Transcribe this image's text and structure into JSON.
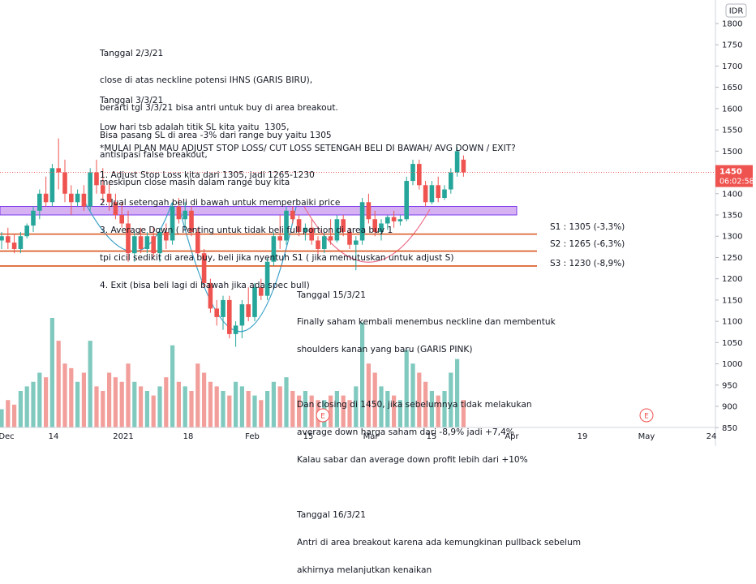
{
  "currency": "IDR",
  "price_tag": {
    "price": "1450",
    "time": "06:02:58"
  },
  "colors": {
    "up": "#26a69a",
    "down": "#ef5350",
    "neckline": "#7c3aed",
    "pink": "#ec6e8a",
    "blue": "#3aa0c8",
    "support": "#d9541e"
  },
  "annotations": {
    "block1": [
      "Tanggal 2/3/21",
      "close di atas neckline potensi IHNS (GARIS BIRU),",
      "berarti tgl 3/3/21 bisa antri untuk buy di area breakout.",
      "Bisa pasang SL di area -3% dari range buy yaitu 1305"
    ],
    "block2": [
      "Tanggal 3/3/21",
      "Low hari tsb adalah titik SL kita yaitu  1305,",
      "antisipasi false breakout,",
      "meskipun close masih dalam range buy kita"
    ],
    "block3": [
      "*MULAI PLAN MAU ADJUST STOP LOSS/ CUT LOSS SETENGAH BELI DI BAWAH/ AVG DOWN / EXIT?",
      "1. Adjust Stop Loss kita dari 1305, jadi 1265-1230",
      "2. Jual setengah beli di bawah untuk memperbaiki price",
      "3. Average Down ( Penting untuk tidak beli full portion di area buy 1",
      "tpi cicil sedikit di area buy, beli jika nyentuh S1 ( jika memutuskan untuk adjust S)",
      "4. Exit (bisa beli lagi di bawah jika ada spec bull)"
    ],
    "block4": [
      "Tanggal 15/3/21",
      "Finally saham kembali menembus neckline dan membentuk",
      "shoulders kanan yang baru (GARIS PINK)",
      "",
      "Dan closing di 1450, jika sebelumnya tidak melakukan",
      "average down harga saham dari -8,9% jadi +7,4%",
      "Kalau sabar dan average down profit lebih dari +10%",
      "",
      "Tanggal 16/3/21",
      "Antri di area breakout karena ada kemungkinan pullback sebelum",
      "akhirnya melanjutkan kenaikan"
    ]
  },
  "levels": [
    {
      "label": "S1 : 1305 (-3,3%)",
      "price": 1305
    },
    {
      "label": "S2 : 1265 (-6,3%)",
      "price": 1265
    },
    {
      "label": "S3 : 1230 (-8,9%)",
      "price": 1230
    }
  ],
  "neckline_zone": [
    1350,
    1370
  ],
  "event_markers": [
    "E",
    "E"
  ],
  "chart_data": {
    "type": "candlestick",
    "series_unit": "IDR",
    "ylim": [
      820,
      1840
    ],
    "y_ticks": [
      850,
      900,
      950,
      1000,
      1050,
      1100,
      1150,
      1200,
      1250,
      1300,
      1350,
      1400,
      1450,
      1500,
      1550,
      1600,
      1650,
      1700,
      1750,
      1800
    ],
    "x_ticks": [
      "Dec",
      "14",
      "2021",
      "18",
      "Feb",
      "15",
      "Mar",
      "15",
      "Apr",
      "19",
      "May",
      "24"
    ],
    "last_price": 1450,
    "candles": [
      [
        1290,
        1310,
        1270,
        1300,
        20
      ],
      [
        1300,
        1320,
        1270,
        1285,
        30
      ],
      [
        1285,
        1305,
        1260,
        1270,
        25
      ],
      [
        1270,
        1310,
        1260,
        1300,
        40
      ],
      [
        1300,
        1330,
        1295,
        1325,
        45
      ],
      [
        1325,
        1370,
        1310,
        1360,
        50
      ],
      [
        1360,
        1410,
        1340,
        1400,
        60
      ],
      [
        1400,
        1440,
        1370,
        1380,
        55
      ],
      [
        1380,
        1470,
        1370,
        1460,
        120
      ],
      [
        1460,
        1530,
        1410,
        1450,
        95
      ],
      [
        1450,
        1480,
        1380,
        1400,
        70
      ],
      [
        1400,
        1420,
        1350,
        1380,
        65
      ],
      [
        1380,
        1410,
        1370,
        1400,
        50
      ],
      [
        1400,
        1420,
        1360,
        1370,
        60
      ],
      [
        1370,
        1460,
        1360,
        1450,
        95
      ],
      [
        1450,
        1480,
        1400,
        1420,
        45
      ],
      [
        1420,
        1460,
        1380,
        1400,
        40
      ],
      [
        1400,
        1430,
        1360,
        1380,
        60
      ],
      [
        1380,
        1400,
        1340,
        1350,
        55
      ],
      [
        1350,
        1380,
        1320,
        1330,
        50
      ],
      [
        1330,
        1360,
        1240,
        1260,
        70
      ],
      [
        1260,
        1310,
        1240,
        1300,
        50
      ],
      [
        1300,
        1320,
        1260,
        1270,
        45
      ],
      [
        1270,
        1310,
        1260,
        1300,
        40
      ],
      [
        1300,
        1320,
        1250,
        1260,
        35
      ],
      [
        1260,
        1320,
        1240,
        1310,
        45
      ],
      [
        1310,
        1330,
        1270,
        1290,
        55
      ],
      [
        1290,
        1380,
        1280,
        1370,
        90
      ],
      [
        1370,
        1390,
        1330,
        1340,
        50
      ],
      [
        1340,
        1380,
        1320,
        1360,
        45
      ],
      [
        1360,
        1370,
        1300,
        1310,
        40
      ],
      [
        1310,
        1320,
        1250,
        1260,
        70
      ],
      [
        1260,
        1270,
        1180,
        1190,
        60
      ],
      [
        1190,
        1200,
        1120,
        1130,
        50
      ],
      [
        1130,
        1150,
        1090,
        1110,
        45
      ],
      [
        1110,
        1160,
        1080,
        1150,
        40
      ],
      [
        1150,
        1160,
        1060,
        1070,
        35
      ],
      [
        1070,
        1100,
        1040,
        1090,
        50
      ],
      [
        1090,
        1150,
        1060,
        1140,
        45
      ],
      [
        1140,
        1180,
        1100,
        1110,
        40
      ],
      [
        1110,
        1190,
        1100,
        1180,
        35
      ],
      [
        1180,
        1200,
        1150,
        1160,
        30
      ],
      [
        1160,
        1250,
        1150,
        1240,
        40
      ],
      [
        1240,
        1310,
        1230,
        1300,
        50
      ],
      [
        1300,
        1350,
        1270,
        1290,
        45
      ],
      [
        1290,
        1370,
        1280,
        1360,
        55
      ],
      [
        1360,
        1370,
        1330,
        1340,
        40
      ],
      [
        1340,
        1350,
        1300,
        1310,
        35
      ],
      [
        1310,
        1330,
        1290,
        1320,
        40
      ],
      [
        1320,
        1340,
        1280,
        1290,
        35
      ],
      [
        1290,
        1300,
        1250,
        1270,
        30
      ],
      [
        1270,
        1310,
        1260,
        1300,
        30
      ],
      [
        1300,
        1340,
        1280,
        1290,
        35
      ],
      [
        1290,
        1350,
        1285,
        1340,
        40
      ],
      [
        1340,
        1350,
        1300,
        1310,
        35
      ],
      [
        1310,
        1320,
        1270,
        1280,
        30
      ],
      [
        1280,
        1300,
        1220,
        1290,
        45
      ],
      [
        1290,
        1390,
        1280,
        1380,
        115
      ],
      [
        1380,
        1400,
        1330,
        1340,
        70
      ],
      [
        1340,
        1360,
        1300,
        1310,
        60
      ],
      [
        1310,
        1340,
        1290,
        1330,
        45
      ],
      [
        1330,
        1350,
        1315,
        1345,
        40
      ],
      [
        1345,
        1360,
        1320,
        1335,
        35
      ],
      [
        1335,
        1350,
        1325,
        1340,
        30
      ],
      [
        1340,
        1440,
        1335,
        1430,
        85
      ],
      [
        1430,
        1480,
        1420,
        1470,
        70
      ],
      [
        1470,
        1480,
        1410,
        1420,
        60
      ],
      [
        1420,
        1430,
        1370,
        1380,
        50
      ],
      [
        1380,
        1430,
        1375,
        1420,
        40
      ],
      [
        1420,
        1440,
        1380,
        1390,
        35
      ],
      [
        1390,
        1420,
        1385,
        1410,
        40
      ],
      [
        1410,
        1460,
        1400,
        1450,
        60
      ],
      [
        1450,
        1510,
        1440,
        1500,
        75
      ],
      [
        1480,
        1490,
        1440,
        1450,
        30
      ]
    ]
  }
}
